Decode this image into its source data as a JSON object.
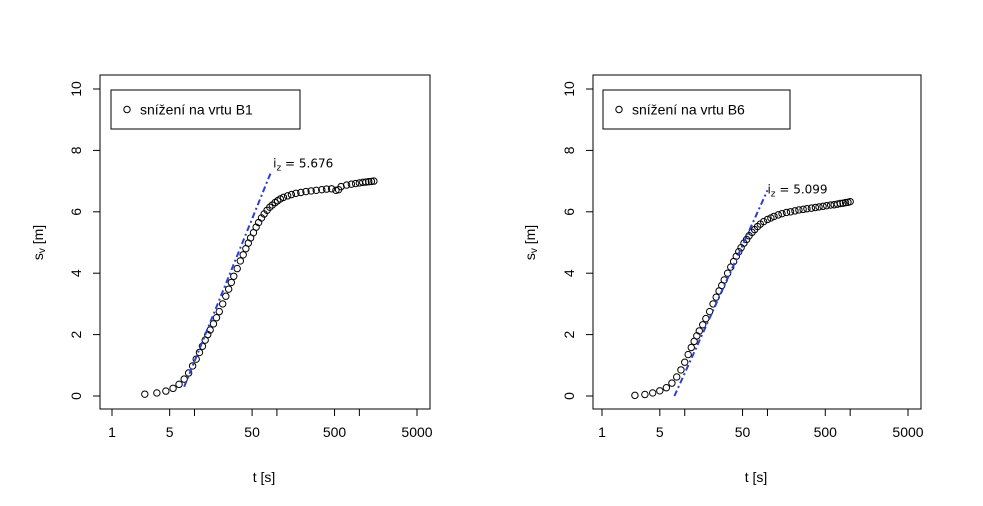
{
  "chart_data": [
    {
      "type": "scatter",
      "log_x": true,
      "xlabel": "t [s]",
      "ylabel_main": "s",
      "ylabel_sub": "v",
      "ylabel_unit": "[m]",
      "xlim": [
        1,
        5000
      ],
      "ylim": [
        0,
        10
      ],
      "x_ticks": [
        1,
        5,
        50,
        500,
        5000
      ],
      "x_minor_ticks": [
        10,
        100,
        1000
      ],
      "y_ticks": [
        0,
        2,
        4,
        6,
        8,
        10
      ],
      "grid": false,
      "legend_position": "top-left",
      "series": [
        {
          "name": "snížení na vrtu B1",
          "marker": "open-circle",
          "x": [
            2.5,
            3.5,
            4.5,
            5.5,
            6.5,
            7.5,
            8.5,
            9.5,
            10.5,
            11.5,
            12.5,
            13.5,
            14.5,
            15.5,
            17,
            18.5,
            20,
            22,
            24,
            26,
            28,
            30,
            33,
            36,
            39,
            42,
            45,
            48,
            52,
            56,
            60,
            65,
            70,
            76,
            82,
            88,
            95,
            102,
            110,
            120,
            135,
            150,
            170,
            195,
            225,
            260,
            300,
            350,
            400,
            460,
            520,
            560,
            600,
            700,
            800,
            900,
            1000,
            1100,
            1200,
            1300,
            1400,
            1500
          ],
          "y": [
            0.06,
            0.1,
            0.16,
            0.25,
            0.38,
            0.55,
            0.75,
            0.98,
            1.2,
            1.42,
            1.62,
            1.82,
            2.0,
            2.15,
            2.35,
            2.55,
            2.75,
            3.0,
            3.25,
            3.48,
            3.7,
            3.9,
            4.15,
            4.4,
            4.6,
            4.8,
            4.98,
            5.15,
            5.32,
            5.5,
            5.65,
            5.8,
            5.93,
            6.05,
            6.15,
            6.22,
            6.3,
            6.36,
            6.42,
            6.47,
            6.52,
            6.56,
            6.6,
            6.63,
            6.66,
            6.68,
            6.7,
            6.72,
            6.74,
            6.75,
            6.7,
            6.72,
            6.82,
            6.87,
            6.9,
            6.92,
            6.94,
            6.96,
            6.97,
            6.98,
            6.99,
            7.0
          ]
        }
      ],
      "trend_line": {
        "x": [
          7.5,
          85
        ],
        "y": [
          0.3,
          7.3
        ],
        "color": "#2b3fd0",
        "style": "dash-dot"
      },
      "annotation": {
        "text_main": "i",
        "text_sub": "z",
        "text_value": " = 5.676",
        "x": 90,
        "y": 7.45
      }
    },
    {
      "type": "scatter",
      "log_x": true,
      "xlabel": "t [s]",
      "ylabel_main": "s",
      "ylabel_sub": "v",
      "ylabel_unit": "[m]",
      "xlim": [
        1,
        5000
      ],
      "ylim": [
        0,
        10
      ],
      "x_ticks": [
        1,
        5,
        50,
        500,
        5000
      ],
      "x_minor_ticks": [
        10,
        100,
        1000
      ],
      "y_ticks": [
        0,
        2,
        4,
        6,
        8,
        10
      ],
      "grid": false,
      "legend_position": "top-left",
      "series": [
        {
          "name": "snížení na vrtu B6",
          "marker": "open-circle",
          "x": [
            2.5,
            3.3,
            4.1,
            5,
            6,
            7,
            8,
            9,
            10,
            11,
            12,
            13,
            14,
            15,
            16.5,
            18,
            20,
            22,
            24,
            26,
            28,
            30,
            33,
            36,
            39,
            42,
            45,
            48,
            52,
            56,
            60,
            65,
            70,
            76,
            82,
            90,
            100,
            110,
            120,
            135,
            150,
            170,
            190,
            215,
            240,
            270,
            300,
            340,
            380,
            420,
            470,
            520,
            580,
            640,
            700,
            760,
            820,
            880,
            940,
            1000
          ],
          "y": [
            0.02,
            0.05,
            0.1,
            0.17,
            0.27,
            0.42,
            0.62,
            0.85,
            1.1,
            1.35,
            1.58,
            1.78,
            1.96,
            2.12,
            2.32,
            2.52,
            2.75,
            3.0,
            3.22,
            3.42,
            3.6,
            3.78,
            4.0,
            4.2,
            4.38,
            4.55,
            4.7,
            4.83,
            4.98,
            5.1,
            5.22,
            5.33,
            5.42,
            5.52,
            5.6,
            5.68,
            5.75,
            5.8,
            5.85,
            5.9,
            5.94,
            5.98,
            6.0,
            6.03,
            6.06,
            6.08,
            6.1,
            6.12,
            6.14,
            6.16,
            6.18,
            6.2,
            6.22,
            6.23,
            6.25,
            6.27,
            6.28,
            6.3,
            6.31,
            6.33
          ]
        }
      ],
      "trend_line": {
        "x": [
          7.5,
          100
        ],
        "y": [
          0.0,
          6.7
        ],
        "color": "#2b3fd0",
        "style": "dash-dot"
      },
      "annotation": {
        "text_main": "i",
        "text_sub": "z",
        "text_value": " = 5.099",
        "x": 100,
        "y": 6.6
      }
    }
  ]
}
